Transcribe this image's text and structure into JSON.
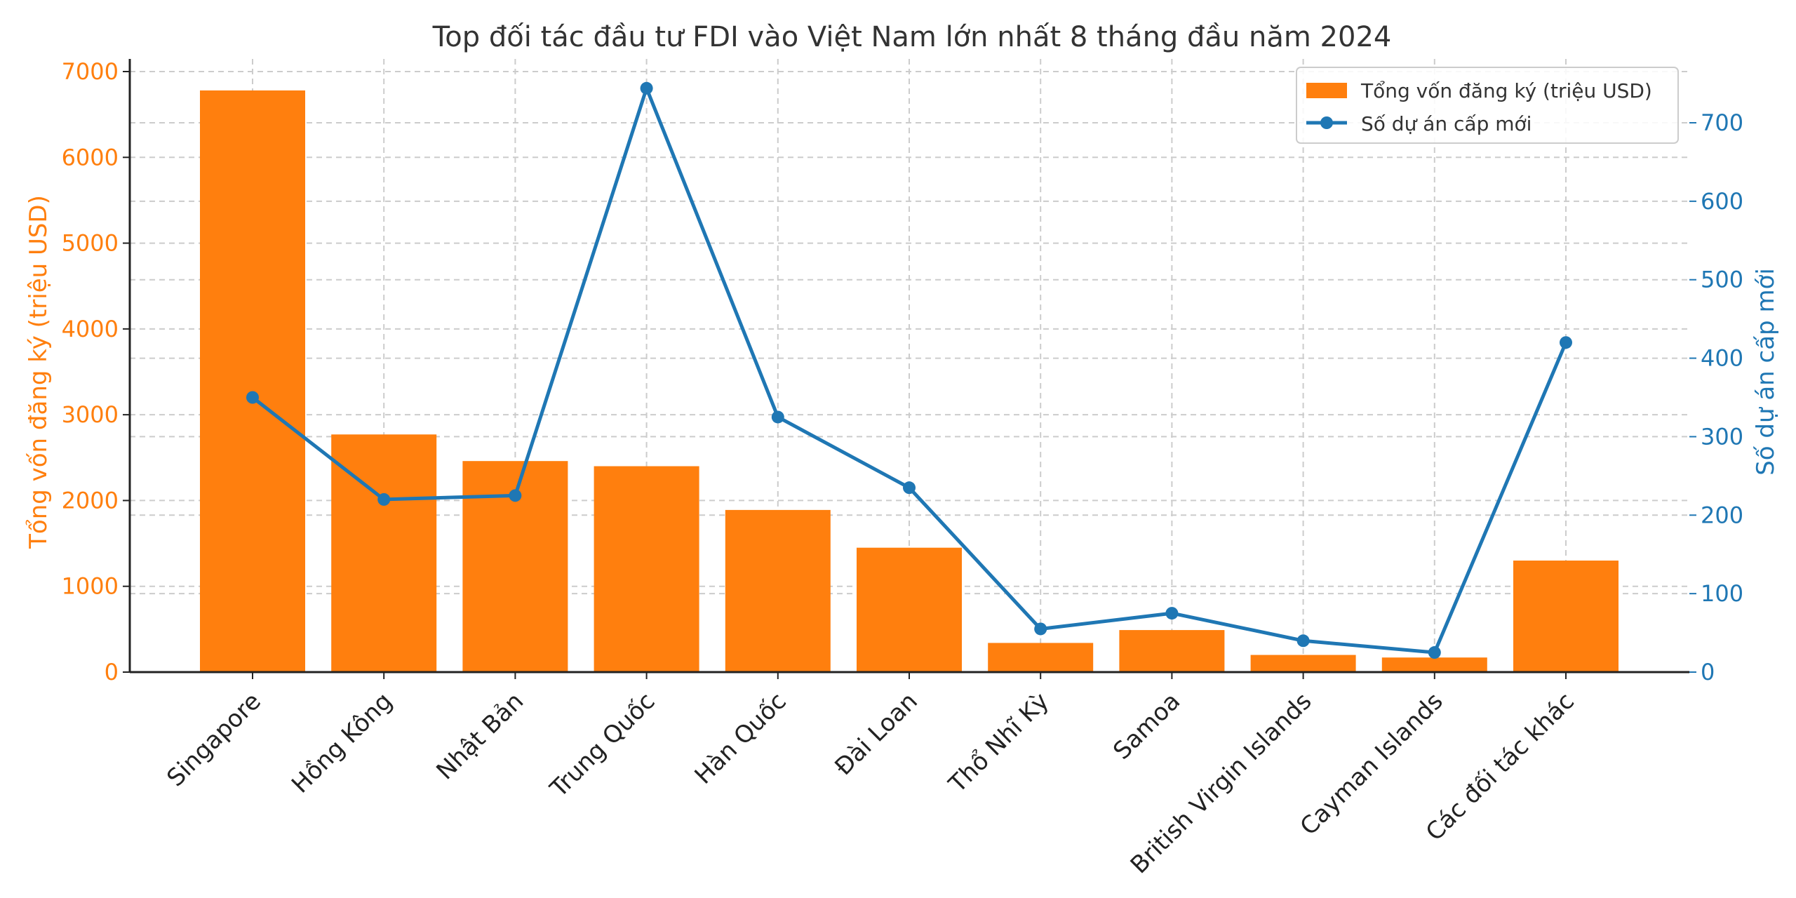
{
  "chart_data": {
    "type": "bar",
    "title": "Top đối tác đầu tư FDI vào Việt Nam lớn nhất 8 tháng đầu năm 2024",
    "categories": [
      "Singapore",
      "Hồng Kông",
      "Nhật Bản",
      "Trung Quốc",
      "Hàn Quốc",
      "Đài Loan",
      "Thổ Nhĩ Kỳ",
      "Samoa",
      "British Virgin Islands",
      "Cayman Islands",
      "Các đối tác khác"
    ],
    "series": [
      {
        "name": "Tổng vốn đăng ký (triệu USD)",
        "kind": "bar",
        "axis": "left",
        "color": "#ff7f0e",
        "values": [
          6780,
          2770,
          2460,
          2400,
          1890,
          1450,
          340,
          490,
          200,
          170,
          1300
        ]
      },
      {
        "name": "Số dự án cấp mới",
        "kind": "line",
        "axis": "right",
        "color": "#1f77b4",
        "values": [
          350,
          220,
          225,
          744,
          325,
          235,
          55,
          75,
          40,
          25,
          420
        ]
      }
    ],
    "ylabel": "Tổng vốn đăng ký (triệu USD)",
    "y2label": "Số dự án cấp mới",
    "ylim": [
      0,
      7000
    ],
    "y2lim": [
      0,
      775
    ],
    "yticks": [
      "0",
      "1000",
      "2000",
      "3000",
      "4000",
      "5000",
      "6000",
      "7000"
    ],
    "y2ticks": [
      "0",
      "100",
      "200",
      "300",
      "400",
      "500",
      "600",
      "700"
    ],
    "grid": true,
    "legend_position": "top-right"
  }
}
